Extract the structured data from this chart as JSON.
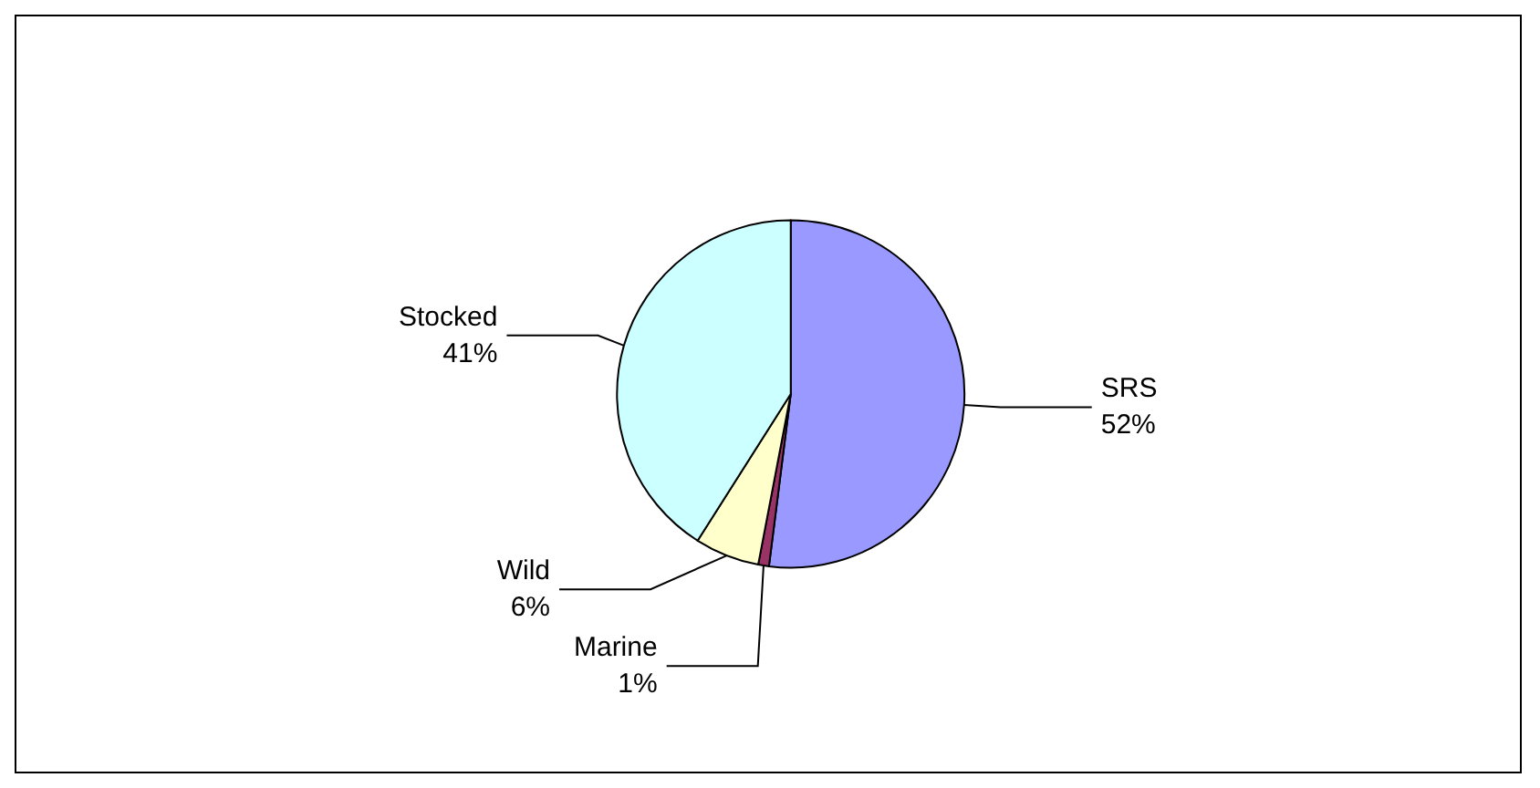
{
  "chart_data": {
    "type": "pie",
    "categories": [
      "SRS",
      "Marine",
      "Wild",
      "Stocked"
    ],
    "values": [
      52,
      1,
      6,
      41
    ],
    "value_labels": [
      "52%",
      "1%",
      "6%",
      "41%"
    ],
    "colors": [
      "#9999ff",
      "#993366",
      "#ffffcc",
      "#ccffff"
    ],
    "legend": false
  }
}
